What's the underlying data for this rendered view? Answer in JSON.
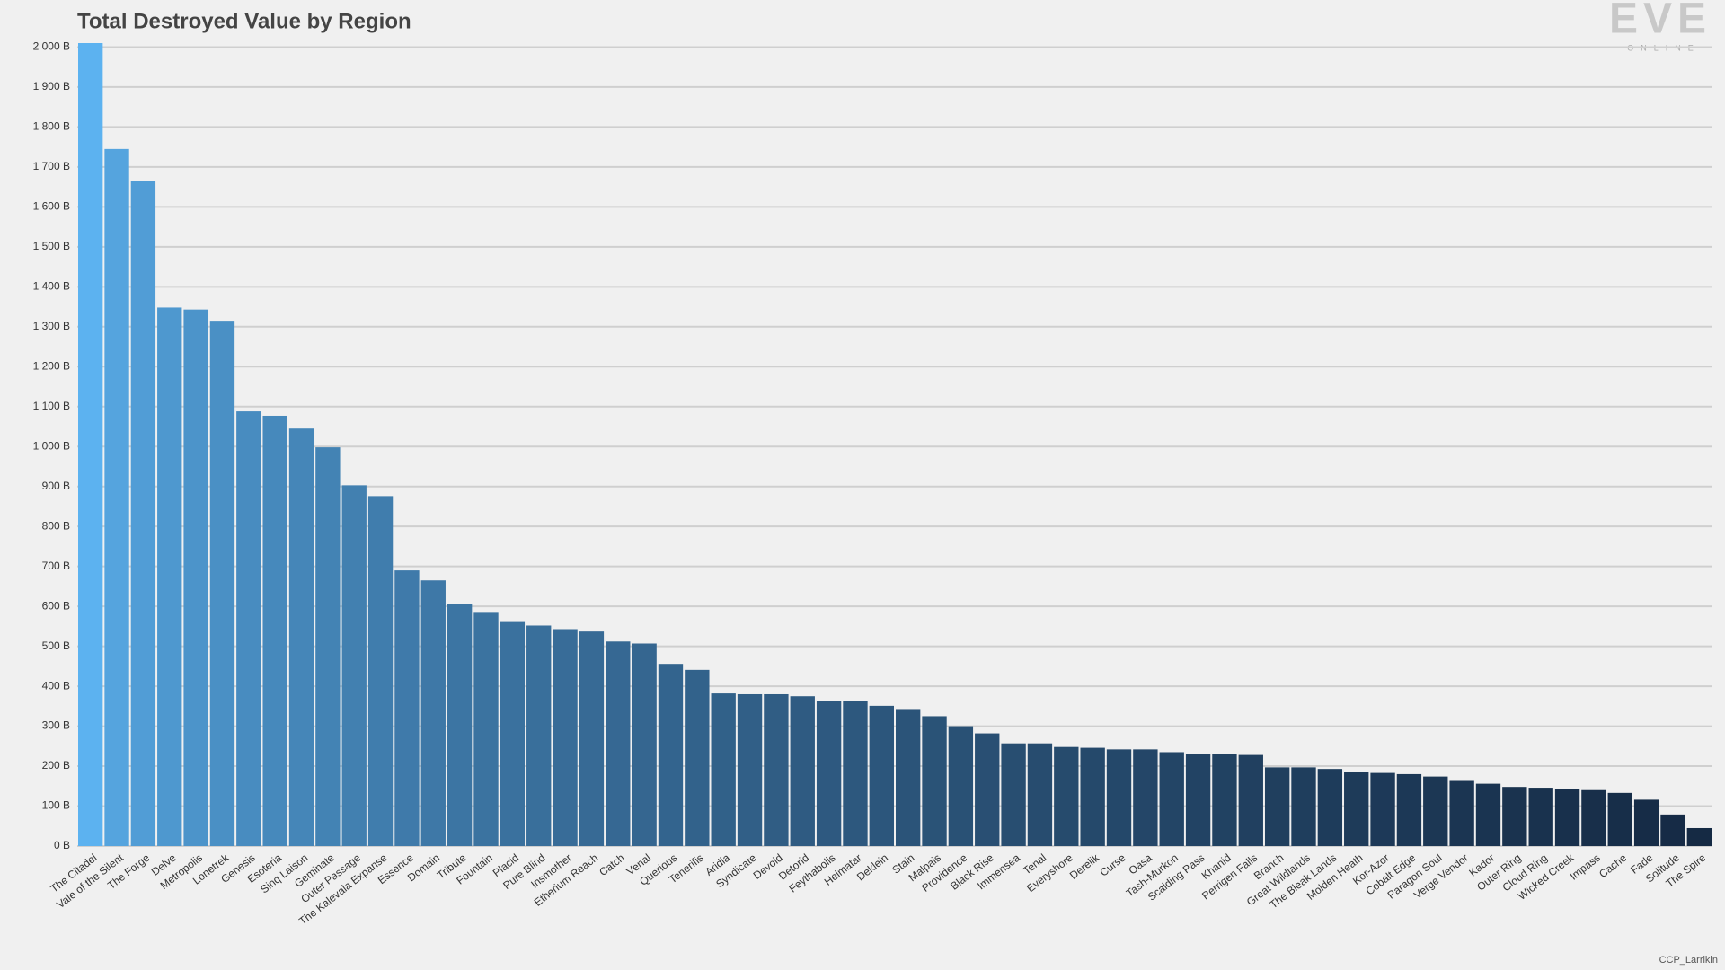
{
  "chart_data": {
    "type": "bar",
    "title": "Total Destroyed Value by Region",
    "logo": "EVE",
    "logo_subtitle": "ONLINE",
    "credit": "CCP_Larrikin",
    "categories": [
      "The Citadel",
      "Vale of the Silent",
      "The Forge",
      "Delve",
      "Metropolis",
      "Lonetrek",
      "Genesis",
      "Esoteria",
      "Sinq Laison",
      "Geminate",
      "Outer Passage",
      "The Kalevala Expanse",
      "Essence",
      "Domain",
      "Tribute",
      "Fountain",
      "Placid",
      "Pure Blind",
      "Insmother",
      "Etherium Reach",
      "Catch",
      "Venal",
      "Querious",
      "Tenerifis",
      "Aridia",
      "Syndicate",
      "Devoid",
      "Detorid",
      "Feythabolis",
      "Heimatar",
      "Deklein",
      "Stain",
      "Malpais",
      "Providence",
      "Black Rise",
      "Immensea",
      "Tenal",
      "Everyshore",
      "Derelik",
      "Curse",
      "Oasa",
      "Tash-Murkon",
      "Scalding Pass",
      "Khanid",
      "Perrigen Falls",
      "Branch",
      "Great Wildlands",
      "The Bleak Lands",
      "Molden Heath",
      "Kor-Azor",
      "Cobalt Edge",
      "Paragon Soul",
      "Verge Vendor",
      "Kador",
      "Outer Ring",
      "Cloud Ring",
      "Wicked Creek",
      "Impass",
      "Cache",
      "Fade",
      "Solitude",
      "The Spire"
    ],
    "values": [
      2010,
      1745,
      1665,
      1348,
      1343,
      1315,
      1088,
      1077,
      1045,
      998,
      903,
      876,
      690,
      665,
      605,
      586,
      563,
      552,
      543,
      537,
      512,
      507,
      456,
      441,
      382,
      380,
      380,
      375,
      362,
      362,
      351,
      343,
      325,
      300,
      282,
      257,
      257,
      248,
      246,
      242,
      242,
      235,
      230,
      230,
      228,
      197,
      197,
      193,
      186,
      183,
      180,
      174,
      163,
      156,
      148,
      146,
      143,
      140,
      133,
      116,
      79,
      45
    ],
    "color_start": "#5cb2f0",
    "color_end": "#152a44",
    "ylim": [
      0,
      2010
    ],
    "yticks": [
      {
        "value": 0,
        "label": "0 B"
      },
      {
        "value": 100,
        "label": "100 B"
      },
      {
        "value": 200,
        "label": "200 B"
      },
      {
        "value": 300,
        "label": "300 B"
      },
      {
        "value": 400,
        "label": "400 B"
      },
      {
        "value": 500,
        "label": "500 B"
      },
      {
        "value": 600,
        "label": "600 B"
      },
      {
        "value": 700,
        "label": "700 B"
      },
      {
        "value": 800,
        "label": "800 B"
      },
      {
        "value": 900,
        "label": "900 B"
      },
      {
        "value": 1000,
        "label": "1 000 B"
      },
      {
        "value": 1100,
        "label": "1 100 B"
      },
      {
        "value": 1200,
        "label": "1 200 B"
      },
      {
        "value": 1300,
        "label": "1 300 B"
      },
      {
        "value": 1400,
        "label": "1 400 B"
      },
      {
        "value": 1500,
        "label": "1 500 B"
      },
      {
        "value": 1600,
        "label": "1 600 B"
      },
      {
        "value": 1700,
        "label": "1 700 B"
      },
      {
        "value": 1800,
        "label": "1 800 B"
      },
      {
        "value": 1900,
        "label": "1 900 B"
      },
      {
        "value": 2000,
        "label": "2 000 B"
      }
    ],
    "grid": true
  }
}
